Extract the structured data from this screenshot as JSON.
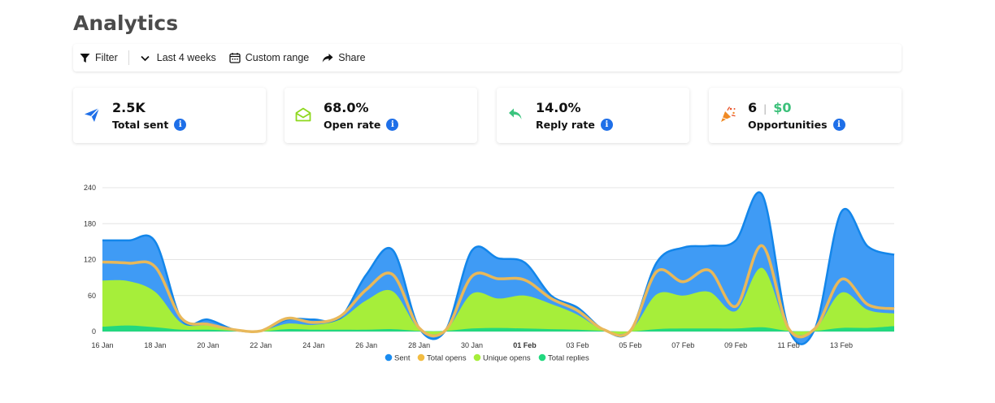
{
  "page": {
    "title": "Analytics"
  },
  "toolbar": {
    "filter_label": "Filter",
    "range_label": "Last 4 weeks",
    "custom_label": "Custom range",
    "share_label": "Share"
  },
  "cards": {
    "sent": {
      "value": "2.5K",
      "label": "Total sent"
    },
    "open": {
      "value": "68.0%",
      "label": "Open rate"
    },
    "reply": {
      "value": "14.0%",
      "label": "Reply rate"
    },
    "opps": {
      "value": "6",
      "money": "$0",
      "label": "Opportunities"
    },
    "info_glyph": "i"
  },
  "colors": {
    "sent": "#1a8cf0",
    "total_opens": "#f2bc42",
    "unique_opens": "#a6ee3a",
    "total_replies": "#22d87f",
    "accent": "#1e6fe8"
  },
  "chart_data": {
    "type": "area",
    "ylim": [
      0,
      240
    ],
    "yticks": [
      0,
      60,
      120,
      180,
      240
    ],
    "x": [
      "16 Jan",
      "17 Jan",
      "18 Jan",
      "19 Jan",
      "20 Jan",
      "21 Jan",
      "22 Jan",
      "23 Jan",
      "24 Jan",
      "25 Jan",
      "26 Jan",
      "27 Jan",
      "28 Jan",
      "29 Jan",
      "30 Jan",
      "31 Jan",
      "01 Feb",
      "02 Feb",
      "03 Feb",
      "04 Feb",
      "05 Feb",
      "06 Feb",
      "07 Feb",
      "08 Feb",
      "09 Feb",
      "10 Feb",
      "11 Feb",
      "12 Feb",
      "13 Feb",
      "14 Feb",
      "15 Feb"
    ],
    "xtick_labels": [
      {
        "label": "16 Jan",
        "bold": false
      },
      {
        "label": "18 Jan",
        "bold": false
      },
      {
        "label": "20 Jan",
        "bold": false
      },
      {
        "label": "22 Jan",
        "bold": false
      },
      {
        "label": "24 Jan",
        "bold": false
      },
      {
        "label": "26 Jan",
        "bold": false
      },
      {
        "label": "28 Jan",
        "bold": false
      },
      {
        "label": "30 Jan",
        "bold": false
      },
      {
        "label": "01 Feb",
        "bold": true
      },
      {
        "label": "03 Feb",
        "bold": false
      },
      {
        "label": "05 Feb",
        "bold": false
      },
      {
        "label": "07 Feb",
        "bold": false
      },
      {
        "label": "09 Feb",
        "bold": false
      },
      {
        "label": "11 Feb",
        "bold": false
      },
      {
        "label": "13 Feb",
        "bold": false
      }
    ],
    "series": [
      {
        "name": "Sent",
        "values": [
          152,
          152,
          150,
          20,
          20,
          3,
          1,
          20,
          20,
          22,
          95,
          136,
          6,
          2,
          135,
          122,
          115,
          60,
          40,
          3,
          1,
          115,
          140,
          143,
          152,
          228,
          5,
          5,
          200,
          142,
          128
        ]
      },
      {
        "name": "Total opens",
        "values": [
          116,
          114,
          108,
          22,
          12,
          3,
          1,
          22,
          15,
          25,
          70,
          95,
          6,
          2,
          92,
          88,
          86,
          55,
          35,
          3,
          1,
          100,
          83,
          102,
          42,
          143,
          5,
          5,
          87,
          45,
          38
        ]
      },
      {
        "name": "Unique opens",
        "values": [
          85,
          84,
          66,
          14,
          10,
          2,
          1,
          13,
          11,
          20,
          52,
          67,
          4,
          2,
          63,
          55,
          60,
          46,
          28,
          2,
          1,
          62,
          60,
          66,
          34,
          106,
          4,
          4,
          65,
          36,
          30
        ]
      },
      {
        "name": "Total replies",
        "values": [
          8,
          10,
          7,
          3,
          3,
          1,
          0,
          4,
          3,
          3,
          3,
          4,
          1,
          1,
          5,
          6,
          5,
          4,
          3,
          1,
          0,
          4,
          5,
          5,
          5,
          7,
          1,
          1,
          6,
          6,
          9
        ]
      }
    ],
    "legend": [
      "Sent",
      "Total opens",
      "Unique opens",
      "Total replies"
    ],
    "legend_position": "bottom",
    "grid": true
  }
}
